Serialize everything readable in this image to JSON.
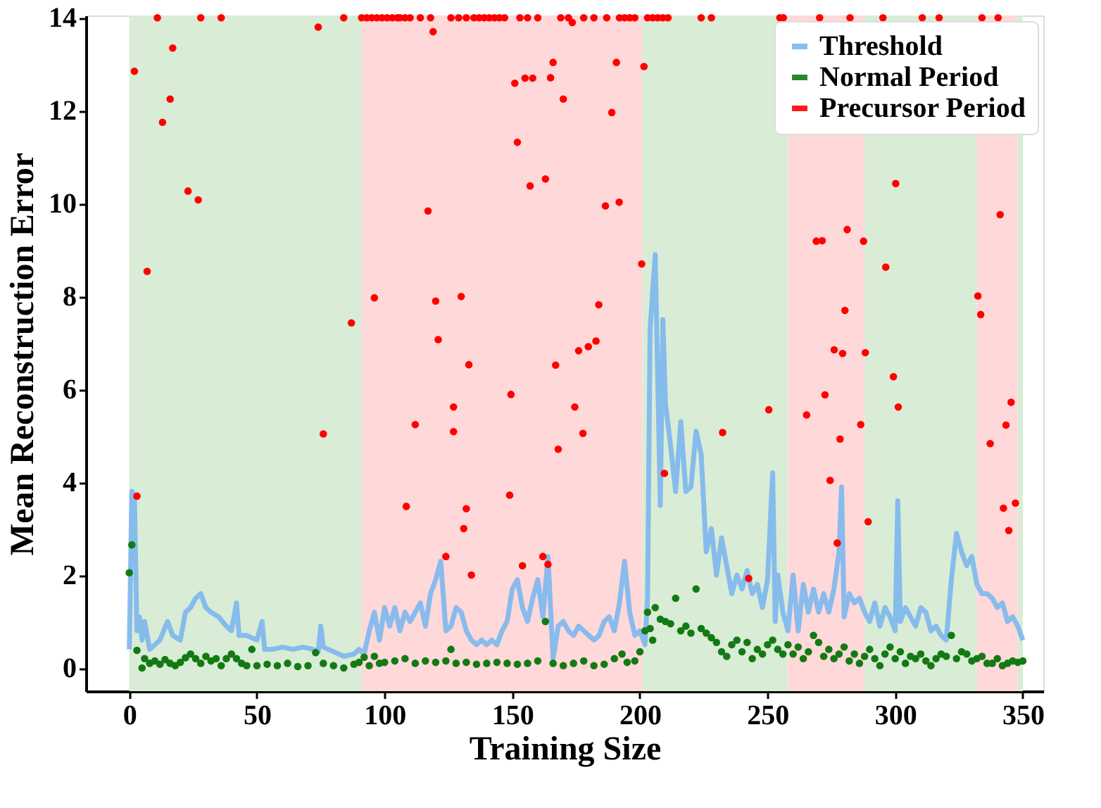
{
  "chart_data": {
    "type": "line",
    "xlabel": "Training Size",
    "ylabel": "Mean Reconstruction Error",
    "xlim": [
      -17,
      358
    ],
    "ylim": [
      -0.5,
      14.05
    ],
    "xticks": [
      0,
      50,
      100,
      150,
      200,
      250,
      300,
      350
    ],
    "yticks": [
      0,
      2,
      4,
      6,
      8,
      10,
      12,
      14
    ],
    "grid": false,
    "legend": "top right",
    "bands": [
      {
        "axis": "x",
        "from": 0,
        "to": 91,
        "color": "#d9ecd6"
      },
      {
        "axis": "x",
        "from": 91,
        "to": 201,
        "color": "#ffd9d9"
      },
      {
        "axis": "x",
        "from": 201,
        "to": 258,
        "color": "#d9ecd6"
      },
      {
        "axis": "x",
        "from": 258,
        "to": 288,
        "color": "#ffd9d9"
      },
      {
        "axis": "x",
        "from": 288,
        "to": 332,
        "color": "#d9ecd6"
      },
      {
        "axis": "x",
        "from": 332,
        "to": 348,
        "color": "#ffd9d9"
      },
      {
        "axis": "x",
        "from": 348,
        "to": 350,
        "color": "#d9ecd6"
      }
    ],
    "series": [
      {
        "name": "Threshold",
        "color": "#7cb7ee",
        "x": [
          0,
          1,
          2,
          3,
          4,
          5,
          6,
          8,
          10,
          12,
          15,
          17,
          20,
          22,
          24,
          26,
          28,
          30,
          32,
          35,
          38,
          40,
          42,
          43,
          46,
          50,
          52,
          53,
          56,
          60,
          64,
          68,
          72,
          74,
          75,
          76,
          80,
          84,
          88,
          90,
          92,
          94,
          96,
          98,
          100,
          102,
          104,
          106,
          108,
          110,
          112,
          114,
          116,
          118,
          120,
          122,
          124,
          126,
          128,
          130,
          132,
          134,
          136,
          138,
          140,
          142,
          144,
          146,
          148,
          150,
          152,
          154,
          156,
          158,
          160,
          162,
          164,
          166,
          168,
          170,
          172,
          174,
          176,
          178,
          180,
          182,
          184,
          186,
          188,
          190,
          192,
          194,
          196,
          198,
          200,
          202,
          203,
          204,
          206,
          208,
          209,
          210,
          212,
          214,
          216,
          218,
          220,
          222,
          224,
          226,
          228,
          230,
          232,
          234,
          236,
          238,
          240,
          242,
          244,
          246,
          248,
          250,
          252,
          253,
          254,
          256,
          258,
          260,
          262,
          264,
          266,
          268,
          270,
          272,
          274,
          276,
          278,
          279,
          280,
          282,
          284,
          286,
          288,
          290,
          292,
          294,
          296,
          298,
          300,
          301,
          302,
          304,
          306,
          308,
          310,
          312,
          314,
          316,
          318,
          320,
          322,
          324,
          326,
          328,
          330,
          332,
          334,
          336,
          338,
          340,
          342,
          344,
          346,
          348,
          350
        ],
        "values": [
          0.4,
          3.8,
          3.7,
          0.8,
          1.1,
          0.6,
          1.0,
          0.4,
          0.5,
          0.6,
          1.0,
          0.7,
          0.6,
          1.2,
          1.3,
          1.5,
          1.6,
          1.3,
          1.2,
          1.1,
          0.9,
          0.8,
          1.4,
          0.7,
          0.7,
          0.6,
          1.0,
          0.4,
          0.4,
          0.45,
          0.4,
          0.45,
          0.4,
          0.35,
          0.9,
          0.45,
          0.35,
          0.25,
          0.3,
          0.4,
          0.3,
          0.8,
          1.2,
          0.6,
          1.3,
          0.9,
          1.3,
          0.8,
          1.2,
          1.0,
          1.2,
          1.4,
          0.9,
          1.6,
          1.9,
          2.3,
          0.8,
          0.9,
          1.3,
          1.2,
          0.8,
          0.6,
          0.5,
          0.6,
          0.5,
          0.6,
          0.5,
          0.8,
          1.0,
          1.7,
          1.9,
          1.3,
          1.0,
          1.5,
          1.9,
          1.1,
          2.4,
          0.2,
          0.9,
          1.0,
          0.8,
          0.7,
          0.9,
          0.8,
          0.7,
          0.6,
          0.7,
          1.0,
          1.1,
          0.8,
          1.4,
          2.3,
          1.2,
          0.7,
          0.8,
          0.5,
          1.5,
          7.3,
          8.9,
          3.5,
          7.5,
          5.7,
          4.8,
          3.8,
          5.3,
          3.8,
          3.9,
          5.1,
          4.6,
          2.5,
          3.0,
          2.0,
          2.8,
          2.2,
          1.6,
          2.0,
          1.7,
          2.1,
          1.6,
          1.8,
          1.3,
          1.9,
          4.2,
          1.0,
          2.0,
          1.2,
          0.8,
          2.0,
          0.8,
          1.8,
          1.2,
          1.7,
          1.2,
          1.6,
          1.2,
          1.7,
          2.5,
          3.9,
          1.1,
          1.6,
          1.4,
          1.5,
          1.2,
          1.0,
          1.4,
          0.9,
          1.3,
          1.1,
          0.8,
          3.6,
          1.0,
          1.3,
          1.1,
          0.9,
          1.3,
          1.2,
          0.8,
          0.9,
          0.7,
          0.6,
          1.9,
          2.9,
          2.5,
          2.2,
          2.4,
          1.8,
          1.6,
          1.6,
          1.5,
          1.3,
          1.4,
          1.0,
          1.1,
          0.9,
          0.6
        ]
      },
      {
        "name": "Normal Period",
        "type": "scatter",
        "color": "#137a13",
        "x": [
          0,
          1,
          3,
          5,
          6,
          8,
          10,
          12,
          14,
          16,
          18,
          20,
          22,
          24,
          26,
          28,
          30,
          32,
          34,
          36,
          38,
          40,
          42,
          44,
          46,
          48,
          50,
          54,
          58,
          62,
          66,
          70,
          73,
          76,
          80,
          84,
          88,
          90,
          92,
          94,
          96,
          98,
          100,
          104,
          108,
          112,
          116,
          120,
          124,
          126,
          128,
          132,
          136,
          140,
          144,
          148,
          152,
          156,
          160,
          163,
          166,
          170,
          174,
          178,
          182,
          186,
          190,
          193,
          195,
          198,
          200,
          202,
          203,
          204,
          205,
          206,
          208,
          210,
          212,
          214,
          216,
          218,
          220,
          222,
          224,
          226,
          228,
          230,
          232,
          234,
          236,
          238,
          240,
          242,
          244,
          246,
          248,
          250,
          252,
          254,
          256,
          258,
          260,
          262,
          264,
          266,
          268,
          270,
          272,
          274,
          276,
          278,
          280,
          282,
          284,
          286,
          288,
          290,
          292,
          294,
          296,
          298,
          300,
          302,
          304,
          306,
          308,
          310,
          312,
          314,
          316,
          318,
          320,
          322,
          324,
          326,
          328,
          330,
          332,
          334,
          336,
          338,
          340,
          342,
          344,
          346,
          348,
          350
        ],
        "values": [
          2.05,
          2.65,
          0.38,
          0.0,
          0.2,
          0.1,
          0.15,
          0.08,
          0.18,
          0.1,
          0.05,
          0.12,
          0.22,
          0.3,
          0.2,
          0.1,
          0.25,
          0.15,
          0.2,
          0.05,
          0.2,
          0.3,
          0.2,
          0.1,
          0.05,
          0.4,
          0.05,
          0.08,
          0.05,
          0.1,
          0.03,
          0.05,
          0.33,
          0.1,
          0.05,
          0.0,
          0.08,
          0.12,
          0.23,
          0.05,
          0.25,
          0.1,
          0.12,
          0.15,
          0.2,
          0.1,
          0.15,
          0.12,
          0.15,
          0.4,
          0.1,
          0.12,
          0.08,
          0.1,
          0.12,
          0.1,
          0.08,
          0.1,
          0.15,
          1.0,
          0.1,
          0.05,
          0.1,
          0.15,
          0.05,
          0.08,
          0.2,
          0.3,
          0.12,
          0.15,
          0.35,
          0.8,
          1.2,
          0.85,
          0.6,
          1.3,
          1.05,
          1.0,
          0.95,
          1.5,
          0.8,
          0.9,
          0.75,
          1.7,
          0.85,
          0.75,
          0.65,
          0.55,
          0.35,
          0.25,
          0.5,
          0.6,
          0.35,
          0.55,
          0.2,
          0.4,
          0.3,
          0.5,
          0.6,
          0.4,
          0.3,
          0.5,
          0.3,
          0.45,
          0.2,
          0.35,
          0.7,
          0.55,
          0.25,
          0.4,
          0.2,
          0.3,
          0.45,
          0.15,
          0.3,
          0.1,
          0.25,
          0.4,
          0.2,
          0.05,
          0.3,
          0.45,
          0.2,
          0.35,
          0.1,
          0.25,
          0.2,
          0.3,
          0.15,
          0.05,
          0.2,
          0.3,
          0.25,
          0.7,
          0.2,
          0.35,
          0.3,
          0.15,
          0.2,
          0.25,
          0.1,
          0.1,
          0.2,
          0.05,
          0.1,
          0.15,
          0.12,
          0.15
        ]
      },
      {
        "name": "Precursor Period",
        "type": "scatter",
        "color": "#ff0000",
        "x": [
          2,
          3,
          7,
          11,
          13,
          16,
          17,
          23,
          27,
          28,
          36,
          74,
          76,
          84,
          87,
          91,
          93,
          95,
          96,
          97,
          99,
          101,
          103,
          105,
          106,
          108,
          108.5,
          110,
          112,
          114,
          117,
          118,
          119,
          120,
          121,
          124,
          126,
          127,
          127,
          129,
          130,
          131,
          132,
          132,
          133,
          134,
          135,
          137,
          139,
          141,
          143,
          145,
          147,
          149,
          149.5,
          151,
          152,
          153,
          154,
          155,
          156,
          157,
          158,
          160,
          162,
          163,
          164,
          165,
          166,
          167,
          168,
          169,
          170,
          172,
          173.5,
          174.5,
          176,
          177.7,
          178,
          179.8,
          182,
          182.8,
          183.9,
          186.5,
          187,
          189,
          190.8,
          191.9,
          192,
          194,
          196,
          198,
          200.7,
          201.6,
          203,
          205,
          207,
          209,
          209.6,
          211,
          224,
          228,
          232.4,
          242.6,
          250.5,
          254.8,
          256.2,
          265.3,
          269.1,
          270.4,
          271.4,
          272.5,
          274.5,
          276.1,
          277.3,
          278.4,
          279.4,
          280.3,
          281.2,
          282.3,
          286.5,
          287.6,
          288.3,
          289.4,
          295.2,
          296.3,
          299.3,
          300.2,
          301.2,
          310.6,
          317.2,
          332.4,
          333.5,
          334,
          337.2,
          340.3,
          341.1,
          342.4,
          343.4,
          344.5,
          345.4,
          347.1
        ],
        "values": [
          12.85,
          3.7,
          8.54,
          14,
          11.75,
          12.25,
          13.35,
          10.27,
          10.08,
          14,
          14,
          13.8,
          5.04,
          14,
          7.43,
          14,
          14,
          14,
          7.97,
          14,
          14,
          14,
          14,
          14,
          14,
          14,
          3.48,
          14,
          5.24,
          14,
          9.84,
          14,
          13.7,
          7.9,
          7.07,
          2.4,
          14,
          5.62,
          5.09,
          14,
          8.0,
          3.0,
          3.43,
          14,
          6.53,
          2.0,
          14,
          14,
          14,
          14,
          14,
          14,
          14,
          3.72,
          5.89,
          12.59,
          11.32,
          14,
          2.2,
          12.7,
          14,
          10.38,
          12.7,
          14,
          2.4,
          10.53,
          2.23,
          12.71,
          13.04,
          6.52,
          4.71,
          14,
          12.25,
          14,
          13.9,
          5.62,
          6.83,
          5.05,
          14,
          6.92,
          14,
          7.04,
          7.82,
          9.95,
          14,
          11.96,
          13.04,
          10.03,
          14,
          14,
          14,
          14,
          8.7,
          12.95,
          14,
          14,
          14,
          14,
          4.19,
          14,
          14,
          14,
          5.07,
          1.93,
          5.56,
          14,
          14,
          5.45,
          9.19,
          14,
          9.2,
          5.88,
          4.04,
          6.85,
          2.69,
          4.93,
          6.77,
          7.7,
          9.44,
          14,
          5.24,
          9.19,
          6.79,
          3.15,
          14,
          8.63,
          6.27,
          10.43,
          5.62,
          14,
          14,
          8.01,
          7.61,
          14,
          4.83,
          14,
          9.76,
          3.44,
          5.23,
          2.96,
          5.72,
          3.55
        ]
      }
    ]
  }
}
